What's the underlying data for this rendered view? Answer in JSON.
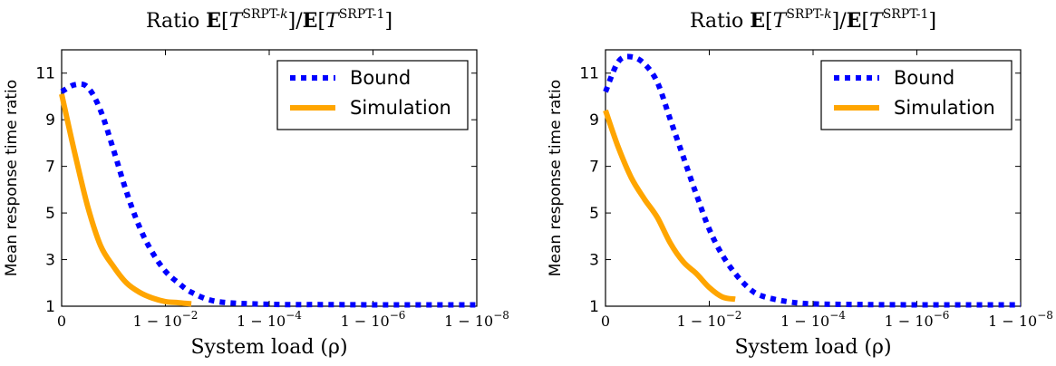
{
  "chart_data": [
    {
      "type": "line",
      "title": "Ratio E[T^SRPT-k]/E[T^SRPT-1]",
      "title_parts": {
        "prefix": "Ratio ",
        "E": "E",
        "T": "T",
        "sup_num": "SRPT-",
        "sup_num_k": "k",
        "slash": "/",
        "sup_den": "SRPT-1"
      },
      "xlabel": "System load (ρ)",
      "ylabel": "Mean response time ratio",
      "x_tick_labels": [
        "0",
        "1 − 10",
        "1 − 10",
        "1 − 10",
        "1 − 10"
      ],
      "x_tick_exponents": [
        "",
        "−2",
        "−4",
        "−6",
        "−8"
      ],
      "x_scale": "log(1 − ρ)",
      "ylim": [
        1,
        12
      ],
      "yticks": [
        1,
        3,
        5,
        7,
        9,
        11
      ],
      "legend_position": "top-right",
      "series": [
        {
          "name": "Bound",
          "style": "dotted",
          "color": "#0000ff",
          "x": [
            "0",
            "1 − 10^-0.25",
            "1 − 10^-0.5",
            "1 − 10^-0.75",
            "1 − 10^-1",
            "1 − 10^-1.25",
            "1 − 10^-1.5",
            "1 − 10^-1.75",
            "1 − 10^-2",
            "1 − 10^-2.25",
            "1 − 10^-2.5",
            "1 − 10^-3",
            "1 − 10^-4",
            "1 − 10^-5",
            "1 − 10^-6",
            "1 − 10^-7",
            "1 − 10^-8"
          ],
          "values": [
            10.2,
            10.5,
            10.4,
            9.4,
            7.7,
            5.9,
            4.4,
            3.3,
            2.5,
            2.0,
            1.6,
            1.2,
            1.08,
            1.07,
            1.06,
            1.06,
            1.06
          ]
        },
        {
          "name": "Simulation",
          "style": "solid",
          "color": "#ffa500",
          "x": [
            "0",
            "1 − 10^-0.25",
            "1 − 10^-0.5",
            "1 − 10^-0.75",
            "1 − 10^-1",
            "1 − 10^-1.25",
            "1 − 10^-1.5",
            "1 − 10^-1.75",
            "1 − 10^-2",
            "1 − 10^-2.25",
            "1 − 10^-2.5"
          ],
          "values": [
            10.1,
            7.6,
            5.3,
            3.6,
            2.7,
            2.0,
            1.6,
            1.35,
            1.2,
            1.15,
            1.1
          ]
        }
      ]
    },
    {
      "type": "line",
      "title": "Ratio E[T^SRPT-k]/E[T^SRPT-1]",
      "title_parts": {
        "prefix": "Ratio ",
        "E": "E",
        "T": "T",
        "sup_num": "SRPT-",
        "sup_num_k": "k",
        "slash": "/",
        "sup_den": "SRPT-1"
      },
      "xlabel": "System load (ρ)",
      "ylabel": "Mean response time ratio",
      "x_tick_labels": [
        "0",
        "1 − 10",
        "1 − 10",
        "1 − 10",
        "1 − 10"
      ],
      "x_tick_exponents": [
        "",
        "−2",
        "−4",
        "−6",
        "−8"
      ],
      "x_scale": "log(1 − ρ)",
      "ylim": [
        1,
        12
      ],
      "yticks": [
        1,
        3,
        5,
        7,
        9,
        11
      ],
      "legend_position": "top-right",
      "series": [
        {
          "name": "Bound",
          "style": "dotted",
          "color": "#0000ff",
          "x": [
            "0",
            "1 − 10^-0.25",
            "1 − 10^-0.5",
            "1 − 10^-0.75",
            "1 − 10^-1",
            "1 − 10^-1.25",
            "1 − 10^-1.5",
            "1 − 10^-1.75",
            "1 − 10^-2",
            "1 − 10^-2.25",
            "1 − 10^-2.5",
            "1 − 10^-2.75",
            "1 − 10^-3",
            "1 − 10^-3.5",
            "1 − 10^-4",
            "1 − 10^-5",
            "1 − 10^-6",
            "1 − 10^-7",
            "1 − 10^-8"
          ],
          "values": [
            10.2,
            11.5,
            11.7,
            11.4,
            10.6,
            9.0,
            7.4,
            5.8,
            4.3,
            3.2,
            2.4,
            1.8,
            1.45,
            1.2,
            1.1,
            1.07,
            1.06,
            1.06,
            1.06
          ]
        },
        {
          "name": "Simulation",
          "style": "solid",
          "color": "#ffa500",
          "x": [
            "0",
            "1 − 10^-0.25",
            "1 − 10^-0.5",
            "1 − 10^-0.75",
            "1 − 10^-1",
            "1 − 10^-1.25",
            "1 − 10^-1.5",
            "1 − 10^-1.75",
            "1 − 10^-2",
            "1 − 10^-2.25",
            "1 − 10^-2.5"
          ],
          "values": [
            9.4,
            7.8,
            6.5,
            5.6,
            4.8,
            3.7,
            2.9,
            2.4,
            1.8,
            1.4,
            1.3
          ]
        }
      ]
    }
  ]
}
